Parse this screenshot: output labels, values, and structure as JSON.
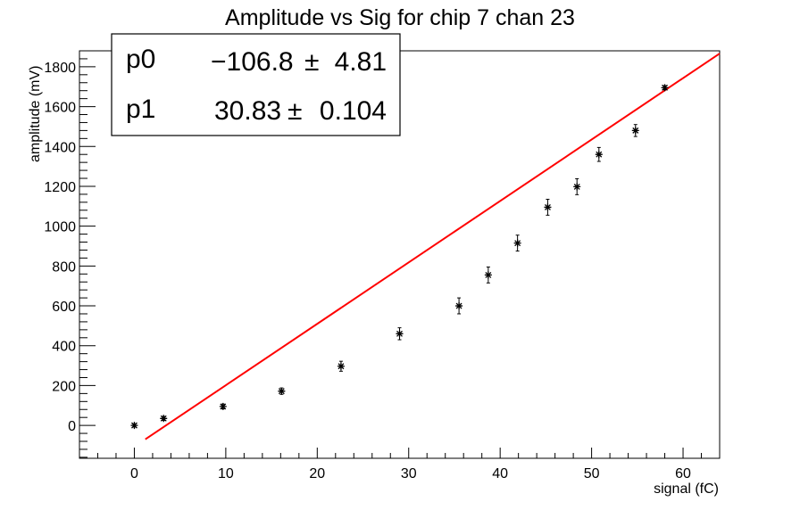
{
  "chart_data": {
    "type": "scatter",
    "title": "Amplitude vs Sig for chip 7 chan 23",
    "xlabel": "signal (fC)",
    "ylabel": "amplitude (mV)",
    "xlim": [
      -6,
      64
    ],
    "ylim": [
      -165,
      1880
    ],
    "x_ticks": [
      0,
      10,
      20,
      30,
      40,
      50,
      60
    ],
    "y_ticks": [
      0,
      200,
      400,
      600,
      800,
      1000,
      1200,
      1400,
      1600,
      1800
    ],
    "grid": false,
    "series": [
      {
        "type": "scatter-errorbar",
        "color": "#000000",
        "points": [
          {
            "x": 0.0,
            "y": 0,
            "err": 8
          },
          {
            "x": 3.2,
            "y": 35,
            "err": 10
          },
          {
            "x": 9.7,
            "y": 95,
            "err": 12
          },
          {
            "x": 16.1,
            "y": 172,
            "err": 16
          },
          {
            "x": 22.6,
            "y": 297,
            "err": 25
          },
          {
            "x": 29.0,
            "y": 460,
            "err": 30
          },
          {
            "x": 35.5,
            "y": 600,
            "err": 40
          },
          {
            "x": 38.7,
            "y": 755,
            "err": 40
          },
          {
            "x": 41.9,
            "y": 915,
            "err": 40
          },
          {
            "x": 45.2,
            "y": 1095,
            "err": 40
          },
          {
            "x": 48.4,
            "y": 1198,
            "err": 40
          },
          {
            "x": 50.8,
            "y": 1360,
            "err": 35
          },
          {
            "x": 54.8,
            "y": 1480,
            "err": 30
          },
          {
            "x": 58.0,
            "y": 1695,
            "err": 10
          }
        ]
      },
      {
        "type": "line",
        "color": "#ff0000",
        "p0": -106.8,
        "p1": 30.83,
        "x_range": [
          1.2,
          64
        ]
      }
    ],
    "stats": [
      {
        "label": "p0",
        "value": "−106.8",
        "pm": "±",
        "error": "4.81"
      },
      {
        "label": "p1",
        "value": "30.83",
        "pm": "±",
        "error": "0.104"
      }
    ]
  }
}
